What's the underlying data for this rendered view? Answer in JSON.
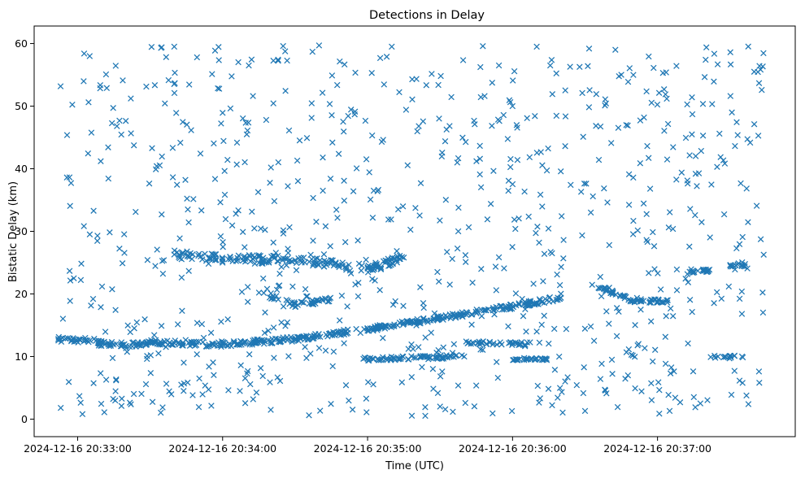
{
  "chart_data": {
    "type": "scatter",
    "title": "Detections in Delay",
    "xlabel": "Time (UTC)",
    "ylabel": "Bistatic Delay (km)",
    "x_unit": "time",
    "x_ticks": [
      "2024-12-16 20:33:00",
      "2024-12-16 20:34:00",
      "2024-12-16 20:35:00",
      "2024-12-16 20:36:00",
      "2024-12-16 20:37:00"
    ],
    "y_ticks": [
      0,
      10,
      20,
      30,
      40,
      50,
      60
    ],
    "xlim": [
      "2024-12-16 20:32:42",
      "2024-12-16 20:37:57"
    ],
    "ylim": [
      -2.8,
      62.8
    ],
    "grid": false,
    "legend": "none",
    "marker": "x",
    "color": "#1f77b4",
    "track_samples": [
      {
        "t": "2024-12-16 20:32:52",
        "delay_km": 12.8
      },
      {
        "t": "2024-12-16 20:33:20",
        "delay_km": 11.7
      },
      {
        "t": "2024-12-16 20:33:30",
        "delay_km": 12.3
      },
      {
        "t": "2024-12-16 20:34:00",
        "delay_km": 11.9
      },
      {
        "t": "2024-12-16 20:34:30",
        "delay_km": 12.8
      },
      {
        "t": "2024-12-16 20:34:50",
        "delay_km": 13.9
      },
      {
        "t": "2024-12-16 20:35:00",
        "delay_km": 14.5
      },
      {
        "t": "2024-12-16 20:35:30",
        "delay_km": 16.2
      },
      {
        "t": "2024-12-16 20:36:00",
        "delay_km": 18.0
      },
      {
        "t": "2024-12-16 20:36:20",
        "delay_km": 19.4
      },
      {
        "t": "2024-12-16 20:33:40",
        "delay_km": 26.3
      },
      {
        "t": "2024-12-16 20:34:00",
        "delay_km": 25.6
      },
      {
        "t": "2024-12-16 20:34:30",
        "delay_km": 25.4
      },
      {
        "t": "2024-12-16 20:35:00",
        "delay_km": 24.2
      },
      {
        "t": "2024-12-16 20:35:15",
        "delay_km": 25.8
      },
      {
        "t": "2024-12-16 20:34:20",
        "delay_km": 20.1
      },
      {
        "t": "2024-12-16 20:34:30",
        "delay_km": 18.4
      },
      {
        "t": "2024-12-16 20:34:40",
        "delay_km": 18.9
      },
      {
        "t": "2024-12-16 20:35:00",
        "delay_km": 9.7
      },
      {
        "t": "2024-12-16 20:35:20",
        "delay_km": 9.8
      },
      {
        "t": "2024-12-16 20:35:40",
        "delay_km": 10.0
      },
      {
        "t": "2024-12-16 20:36:00",
        "delay_km": 12.1
      },
      {
        "t": "2024-12-16 20:36:10",
        "delay_km": 9.7
      },
      {
        "t": "2024-12-16 20:36:40",
        "delay_km": 21.0
      },
      {
        "t": "2024-12-16 20:36:50",
        "delay_km": 19.0
      },
      {
        "t": "2024-12-16 20:37:00",
        "delay_km": 18.8
      },
      {
        "t": "2024-12-16 20:37:15",
        "delay_km": 23.6
      },
      {
        "t": "2024-12-16 20:37:30",
        "delay_km": 24.6
      },
      {
        "t": "2024-12-16 20:37:25",
        "delay_km": 10.0
      },
      {
        "t": "2024-12-16 20:37:35",
        "delay_km": 10.0
      }
    ],
    "scattered_samples": [
      {
        "t": "2024-12-16 20:32:53",
        "delay_km": 1.8
      },
      {
        "t": "2024-12-16 20:33:02",
        "delay_km": 0.8
      },
      {
        "t": "2024-12-16 20:33:05",
        "delay_km": 58.0
      },
      {
        "t": "2024-12-16 20:33:40",
        "delay_km": 59.5
      },
      {
        "t": "2024-12-16 20:34:10",
        "delay_km": 45.5
      },
      {
        "t": "2024-12-16 20:34:20",
        "delay_km": 40.2
      },
      {
        "t": "2024-12-16 20:35:10",
        "delay_km": 59.5
      },
      {
        "t": "2024-12-16 20:35:30",
        "delay_km": 2.0
      },
      {
        "t": "2024-12-16 20:36:00",
        "delay_km": 50.0
      },
      {
        "t": "2024-12-16 20:36:10",
        "delay_km": 59.5
      },
      {
        "t": "2024-12-16 20:36:30",
        "delay_km": 1.3
      },
      {
        "t": "2024-12-16 20:36:45",
        "delay_km": 55.0
      },
      {
        "t": "2024-12-16 20:37:05",
        "delay_km": 1.3
      },
      {
        "t": "2024-12-16 20:37:40",
        "delay_km": 55.5
      },
      {
        "t": "2024-12-16 20:37:42",
        "delay_km": 7.6
      }
    ]
  }
}
